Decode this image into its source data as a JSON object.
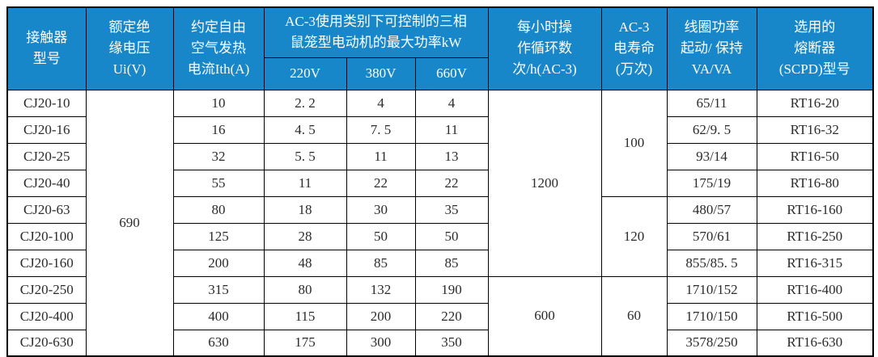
{
  "colors": {
    "header_bg": "#1787c9",
    "header_text": "#ffffff",
    "body_text": "#2b2b2b",
    "border": "#000000"
  },
  "table": {
    "header": {
      "model": "接触器\n型号",
      "insulation_voltage": "额定绝\n缘电压\nUi(V)",
      "thermal_current": "约定自由\n空气发热\n电流Ith(A)",
      "ac3_power_group": "AC-3使用类别下可控制的三相\n鼠笼型电动机的最大功率kW",
      "voltage_cols": [
        "220V",
        "380V",
        "660V"
      ],
      "ops_per_hour": "每小时操\n作循环数\n次/h(AC-3)",
      "electrical_life": "AC-3\n电寿命\n(万次)",
      "coil_power": "线圈功率\n起动/ 保持\nVA/VA",
      "fuse": "选用的\n熔断器\n(SCPD)型号"
    },
    "merged": {
      "insulation_voltage": [
        {
          "value": "690",
          "start": 0,
          "span": 10
        }
      ],
      "ops_per_hour": [
        {
          "value": "1200",
          "start": 0,
          "span": 7
        },
        {
          "value": "600",
          "start": 7,
          "span": 3
        }
      ],
      "electrical_life": [
        {
          "value": "100",
          "start": 0,
          "span": 4
        },
        {
          "value": "120",
          "start": 4,
          "span": 3
        },
        {
          "value": "60",
          "start": 7,
          "span": 3
        }
      ]
    },
    "rows": [
      {
        "model": "CJ20-10",
        "ith": "10",
        "p220": "2. 2",
        "p380": "4",
        "p660": "4",
        "coil": "65/11",
        "fuse": "RT16-20"
      },
      {
        "model": "CJ20-16",
        "ith": "16",
        "p220": "4. 5",
        "p380": "7. 5",
        "p660": "11",
        "coil": "62/9. 5",
        "fuse": "RT16-32"
      },
      {
        "model": "CJ20-25",
        "ith": "32",
        "p220": "5. 5",
        "p380": "11",
        "p660": "13",
        "coil": "93/14",
        "fuse": "RT16-50"
      },
      {
        "model": "CJ20-40",
        "ith": "55",
        "p220": "11",
        "p380": "22",
        "p660": "22",
        "coil": "175/19",
        "fuse": "RT16-80"
      },
      {
        "model": "CJ20-63",
        "ith": "80",
        "p220": "18",
        "p380": "30",
        "p660": "35",
        "coil": "480/57",
        "fuse": "RT16-160"
      },
      {
        "model": "CJ20-100",
        "ith": "125",
        "p220": "28",
        "p380": "50",
        "p660": "50",
        "coil": "570/61",
        "fuse": "RT16-250"
      },
      {
        "model": "CJ20-160",
        "ith": "200",
        "p220": "48",
        "p380": "85",
        "p660": "85",
        "coil": "855/85. 5",
        "fuse": "RT16-315"
      },
      {
        "model": "CJ20-250",
        "ith": "315",
        "p220": "80",
        "p380": "132",
        "p660": "190",
        "coil": "1710/152",
        "fuse": "RT16-400"
      },
      {
        "model": "CJ20-400",
        "ith": "400",
        "p220": "115",
        "p380": "200",
        "p660": "220",
        "coil": "1710/150",
        "fuse": "RT16-500"
      },
      {
        "model": "CJ20-630",
        "ith": "630",
        "p220": "175",
        "p380": "300",
        "p660": "350",
        "coil": "3578/250",
        "fuse": "RT16-630"
      }
    ]
  }
}
